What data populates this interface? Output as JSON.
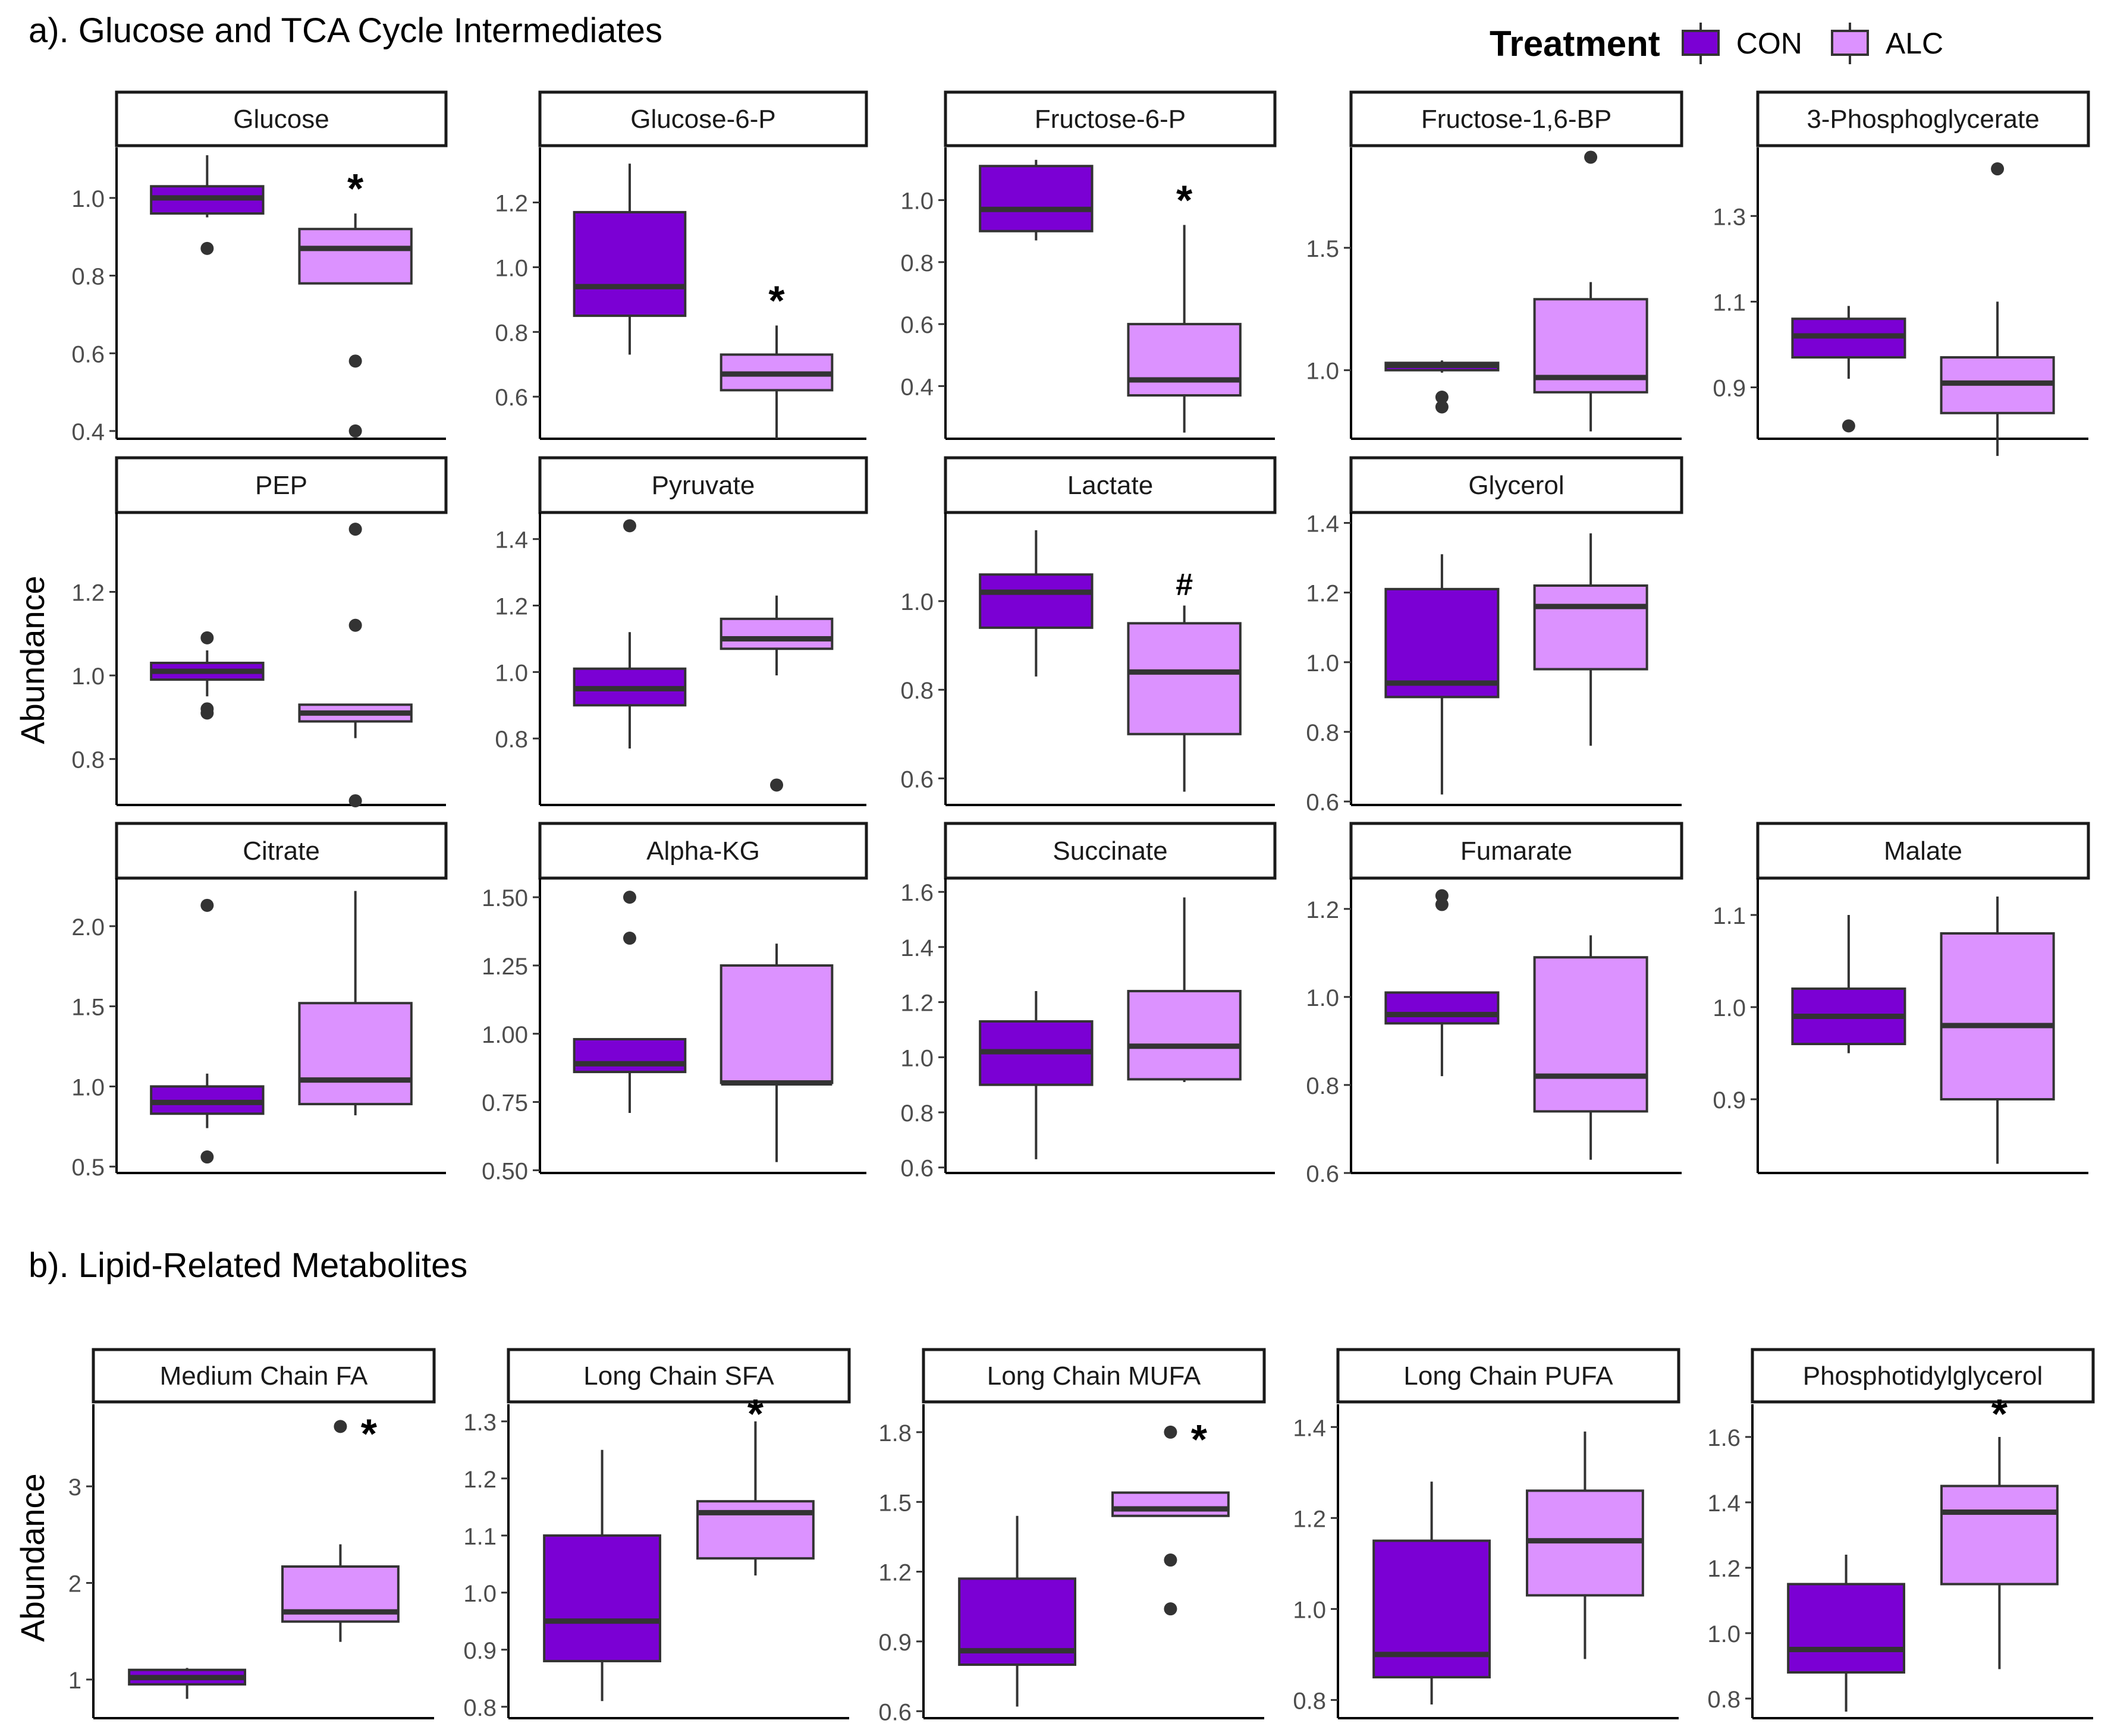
{
  "legend": {
    "title": "Treatment",
    "entries": [
      {
        "label": "CON",
        "color": "#7b00d4"
      },
      {
        "label": "ALC",
        "color": "#dc92ff"
      }
    ]
  },
  "sections": [
    {
      "title": "a). Glucose and TCA Cycle Intermediates"
    },
    {
      "title": "b). Lipid-Related Metabolites"
    }
  ],
  "chart_data": {
    "type": "boxplot",
    "y_label": "Abundance",
    "groups": [
      "CON",
      "ALC"
    ],
    "colors": {
      "CON": "#7b00d4",
      "ALC": "#dc92ff"
    },
    "panels": [
      {
        "title": "Glucose",
        "section": "a",
        "ylim": [
          0.38,
          1.13
        ],
        "ticks": [
          0.4,
          0.6,
          0.8,
          1.0
        ],
        "tick_labels": [
          "0.4",
          "0.6",
          "0.8",
          "1.0"
        ],
        "sig": "*",
        "boxes": [
          {
            "q1": 0.96,
            "median": 1.0,
            "q3": 1.03,
            "lo": 0.95,
            "hi": 1.11,
            "outliers": [
              0.87
            ]
          },
          {
            "q1": 0.78,
            "median": 0.87,
            "q3": 0.92,
            "lo": 0.78,
            "hi": 0.96,
            "outliers": [
              0.58,
              0.4
            ]
          }
        ]
      },
      {
        "title": "Glucose-6-P",
        "section": "a",
        "ylim": [
          0.47,
          1.37
        ],
        "ticks": [
          0.6,
          0.8,
          1.0,
          1.2
        ],
        "tick_labels": [
          "0.6",
          "0.8",
          "1.0",
          "1.2"
        ],
        "sig": "*",
        "boxes": [
          {
            "q1": 0.85,
            "median": 0.94,
            "q3": 1.17,
            "lo": 0.73,
            "hi": 1.32,
            "outliers": []
          },
          {
            "q1": 0.62,
            "median": 0.67,
            "q3": 0.73,
            "lo": 0.47,
            "hi": 0.82,
            "outliers": []
          }
        ]
      },
      {
        "title": "Fructose-6-P",
        "section": "a",
        "ylim": [
          0.23,
          1.17
        ],
        "ticks": [
          0.4,
          0.6,
          0.8,
          1.0
        ],
        "tick_labels": [
          "0.4",
          "0.6",
          "0.8",
          "1.0"
        ],
        "sig": "*",
        "boxes": [
          {
            "q1": 0.9,
            "median": 0.97,
            "q3": 1.11,
            "lo": 0.87,
            "hi": 1.13,
            "outliers": []
          },
          {
            "q1": 0.37,
            "median": 0.42,
            "q3": 0.6,
            "lo": 0.25,
            "hi": 0.92,
            "outliers": []
          }
        ]
      },
      {
        "title": "Fructose-1,6-BP",
        "section": "a",
        "ylim": [
          0.72,
          1.91
        ],
        "ticks": [
          1.0,
          1.5
        ],
        "tick_labels": [
          "1.0",
          "1.5"
        ],
        "sig": "",
        "boxes": [
          {
            "q1": 1.0,
            "median": 1.02,
            "q3": 1.03,
            "lo": 0.99,
            "hi": 1.04,
            "outliers": [
              0.89,
              0.85
            ]
          },
          {
            "q1": 0.91,
            "median": 0.97,
            "q3": 1.29,
            "lo": 0.75,
            "hi": 1.36,
            "outliers": [
              1.87
            ]
          }
        ]
      },
      {
        "title": "3-Phosphoglycerate",
        "section": "a",
        "ylim": [
          0.78,
          1.46
        ],
        "ticks": [
          0.9,
          1.1,
          1.3
        ],
        "tick_labels": [
          "0.9",
          "1.1",
          "1.3"
        ],
        "sig": "",
        "boxes": [
          {
            "q1": 0.97,
            "median": 1.02,
            "q3": 1.06,
            "lo": 0.92,
            "hi": 1.09,
            "outliers": [
              0.81
            ]
          },
          {
            "q1": 0.84,
            "median": 0.91,
            "q3": 0.97,
            "lo": 0.74,
            "hi": 1.1,
            "outliers": [
              1.41
            ]
          }
        ]
      },
      {
        "title": "PEP",
        "section": "a",
        "ylim": [
          0.69,
          1.39
        ],
        "ticks": [
          0.8,
          1.0,
          1.2
        ],
        "tick_labels": [
          "0.8",
          "1.0",
          "1.2"
        ],
        "sig": "",
        "boxes": [
          {
            "q1": 0.99,
            "median": 1.01,
            "q3": 1.03,
            "lo": 0.95,
            "hi": 1.06,
            "outliers": [
              1.09,
              0.92,
              0.91
            ]
          },
          {
            "q1": 0.89,
            "median": 0.91,
            "q3": 0.93,
            "lo": 0.85,
            "hi": 0.93,
            "outliers": [
              1.35,
              1.12,
              0.7
            ]
          }
        ]
      },
      {
        "title": "Pyruvate",
        "section": "a",
        "ylim": [
          0.6,
          1.48
        ],
        "ticks": [
          0.8,
          1.0,
          1.2,
          1.4
        ],
        "tick_labels": [
          "0.8",
          "1.0",
          "1.2",
          "1.4"
        ],
        "sig": "",
        "boxes": [
          {
            "q1": 0.9,
            "median": 0.95,
            "q3": 1.01,
            "lo": 0.77,
            "hi": 1.12,
            "outliers": [
              1.44
            ]
          },
          {
            "q1": 1.07,
            "median": 1.1,
            "q3": 1.16,
            "lo": 0.99,
            "hi": 1.23,
            "outliers": [
              0.66
            ]
          }
        ]
      },
      {
        "title": "Lactate",
        "section": "a",
        "ylim": [
          0.54,
          1.2
        ],
        "ticks": [
          0.6,
          0.8,
          1.0
        ],
        "tick_labels": [
          "0.6",
          "0.8",
          "1.0"
        ],
        "sig": "#",
        "boxes": [
          {
            "q1": 0.94,
            "median": 1.02,
            "q3": 1.06,
            "lo": 0.83,
            "hi": 1.16,
            "outliers": []
          },
          {
            "q1": 0.7,
            "median": 0.84,
            "q3": 0.95,
            "lo": 0.57,
            "hi": 0.99,
            "outliers": []
          }
        ]
      },
      {
        "title": "Glycerol",
        "section": "a",
        "ylim": [
          0.59,
          1.43
        ],
        "ticks": [
          0.6,
          0.8,
          1.0,
          1.2,
          1.4
        ],
        "tick_labels": [
          "0.6",
          "0.8",
          "1.0",
          "1.2",
          "1.4"
        ],
        "sig": "",
        "boxes": [
          {
            "q1": 0.9,
            "median": 0.94,
            "q3": 1.21,
            "lo": 0.62,
            "hi": 1.31,
            "outliers": []
          },
          {
            "q1": 0.98,
            "median": 1.16,
            "q3": 1.22,
            "lo": 0.76,
            "hi": 1.37,
            "outliers": []
          }
        ]
      },
      null,
      {
        "title": "Citrate",
        "section": "a",
        "ylim": [
          0.46,
          2.3
        ],
        "ticks": [
          0.5,
          1.0,
          1.5,
          2.0
        ],
        "tick_labels": [
          "0.5",
          "1.0",
          "1.5",
          "2.0"
        ],
        "sig": "",
        "boxes": [
          {
            "q1": 0.83,
            "median": 0.9,
            "q3": 1.0,
            "lo": 0.74,
            "hi": 1.08,
            "outliers": [
              2.13,
              0.56
            ]
          },
          {
            "q1": 0.89,
            "median": 1.04,
            "q3": 1.52,
            "lo": 0.82,
            "hi": 2.22,
            "outliers": []
          }
        ]
      },
      {
        "title": "Alpha-KG",
        "section": "a",
        "ylim": [
          0.49,
          1.57
        ],
        "ticks": [
          0.5,
          0.75,
          1.0,
          1.25,
          1.5
        ],
        "tick_labels": [
          "0.50",
          "0.75",
          "1.00",
          "1.25",
          "1.50"
        ],
        "sig": "",
        "boxes": [
          {
            "q1": 0.86,
            "median": 0.89,
            "q3": 0.98,
            "lo": 0.71,
            "hi": 0.98,
            "outliers": [
              1.5,
              1.35
            ]
          },
          {
            "q1": 0.82,
            "median": 0.82,
            "q3": 1.25,
            "lo": 0.53,
            "hi": 1.33,
            "outliers": []
          }
        ]
      },
      {
        "title": "Succinate",
        "section": "a",
        "ylim": [
          0.58,
          1.65
        ],
        "ticks": [
          0.6,
          0.8,
          1.0,
          1.2,
          1.4,
          1.6
        ],
        "tick_labels": [
          "0.6",
          "0.8",
          "1.0",
          "1.2",
          "1.4",
          "1.6"
        ],
        "sig": "",
        "boxes": [
          {
            "q1": 0.9,
            "median": 1.02,
            "q3": 1.13,
            "lo": 0.63,
            "hi": 1.24,
            "outliers": []
          },
          {
            "q1": 0.92,
            "median": 1.04,
            "q3": 1.24,
            "lo": 0.91,
            "hi": 1.58,
            "outliers": []
          }
        ]
      },
      {
        "title": "Fumarate",
        "section": "a",
        "ylim": [
          0.6,
          1.27
        ],
        "ticks": [
          0.6,
          0.8,
          1.0,
          1.2
        ],
        "tick_labels": [
          "0.6",
          "0.8",
          "1.0",
          "1.2"
        ],
        "sig": "",
        "boxes": [
          {
            "q1": 0.94,
            "median": 0.96,
            "q3": 1.01,
            "lo": 0.82,
            "hi": 1.01,
            "outliers": [
              1.23,
              1.21
            ]
          },
          {
            "q1": 0.74,
            "median": 0.82,
            "q3": 1.09,
            "lo": 0.63,
            "hi": 1.14,
            "outliers": []
          }
        ]
      },
      {
        "title": "Malate",
        "section": "a",
        "ylim": [
          0.82,
          1.14
        ],
        "ticks": [
          0.9,
          1.0,
          1.1
        ],
        "tick_labels": [
          "0.9",
          "1.0",
          "1.1"
        ],
        "sig": "",
        "boxes": [
          {
            "q1": 0.96,
            "median": 0.99,
            "q3": 1.02,
            "lo": 0.95,
            "hi": 1.1,
            "outliers": []
          },
          {
            "q1": 0.9,
            "median": 0.98,
            "q3": 1.08,
            "lo": 0.83,
            "hi": 1.12,
            "outliers": []
          }
        ]
      },
      {
        "title": "Medium Chain FA",
        "section": "b",
        "ylim": [
          0.6,
          3.85
        ],
        "ticks": [
          1,
          2,
          3
        ],
        "tick_labels": [
          "1",
          "2",
          "3"
        ],
        "sig": "*",
        "boxes": [
          {
            "q1": 0.95,
            "median": 1.02,
            "q3": 1.1,
            "lo": 0.8,
            "hi": 1.12,
            "outliers": []
          },
          {
            "q1": 1.6,
            "median": 1.7,
            "q3": 2.17,
            "lo": 1.39,
            "hi": 2.4,
            "outliers": [
              3.62
            ]
          }
        ]
      },
      {
        "title": "Long Chain SFA",
        "section": "b",
        "ylim": [
          0.78,
          1.33
        ],
        "ticks": [
          0.8,
          0.9,
          1.0,
          1.1,
          1.2,
          1.3
        ],
        "tick_labels": [
          "0.8",
          "0.9",
          "1.0",
          "1.1",
          "1.2",
          "1.3"
        ],
        "sig": "*",
        "boxes": [
          {
            "q1": 0.88,
            "median": 0.95,
            "q3": 1.1,
            "lo": 0.81,
            "hi": 1.25,
            "outliers": []
          },
          {
            "q1": 1.06,
            "median": 1.14,
            "q3": 1.16,
            "lo": 1.03,
            "hi": 1.3,
            "outliers": []
          }
        ]
      },
      {
        "title": "Long Chain MUFA",
        "section": "b",
        "ylim": [
          0.57,
          1.92
        ],
        "ticks": [
          0.6,
          0.9,
          1.2,
          1.5,
          1.8
        ],
        "tick_labels": [
          "0.6",
          "0.9",
          "1.2",
          "1.5",
          "1.8"
        ],
        "sig": "*",
        "boxes": [
          {
            "q1": 0.8,
            "median": 0.86,
            "q3": 1.17,
            "lo": 0.62,
            "hi": 1.44,
            "outliers": []
          },
          {
            "q1": 1.44,
            "median": 1.47,
            "q3": 1.54,
            "lo": 1.44,
            "hi": 1.54,
            "outliers": [
              1.8,
              1.25,
              1.04
            ]
          }
        ]
      },
      {
        "title": "Long Chain PUFA",
        "section": "b",
        "ylim": [
          0.76,
          1.45
        ],
        "ticks": [
          0.8,
          1.0,
          1.2,
          1.4
        ],
        "tick_labels": [
          "0.8",
          "1.0",
          "1.2",
          "1.4"
        ],
        "sig": "",
        "boxes": [
          {
            "q1": 0.85,
            "median": 0.9,
            "q3": 1.15,
            "lo": 0.79,
            "hi": 1.28,
            "outliers": []
          },
          {
            "q1": 1.03,
            "median": 1.15,
            "q3": 1.26,
            "lo": 0.89,
            "hi": 1.39,
            "outliers": []
          }
        ]
      },
      {
        "title": "Phosphotidylglycerol",
        "section": "b",
        "ylim": [
          0.74,
          1.7
        ],
        "ticks": [
          0.8,
          1.0,
          1.2,
          1.4,
          1.6
        ],
        "tick_labels": [
          "0.8",
          "1.0",
          "1.2",
          "1.4",
          "1.6"
        ],
        "sig": "*",
        "boxes": [
          {
            "q1": 0.88,
            "median": 0.95,
            "q3": 1.15,
            "lo": 0.76,
            "hi": 1.24,
            "outliers": []
          },
          {
            "q1": 1.15,
            "median": 1.37,
            "q3": 1.45,
            "lo": 0.89,
            "hi": 1.6,
            "outliers": []
          }
        ]
      }
    ]
  }
}
